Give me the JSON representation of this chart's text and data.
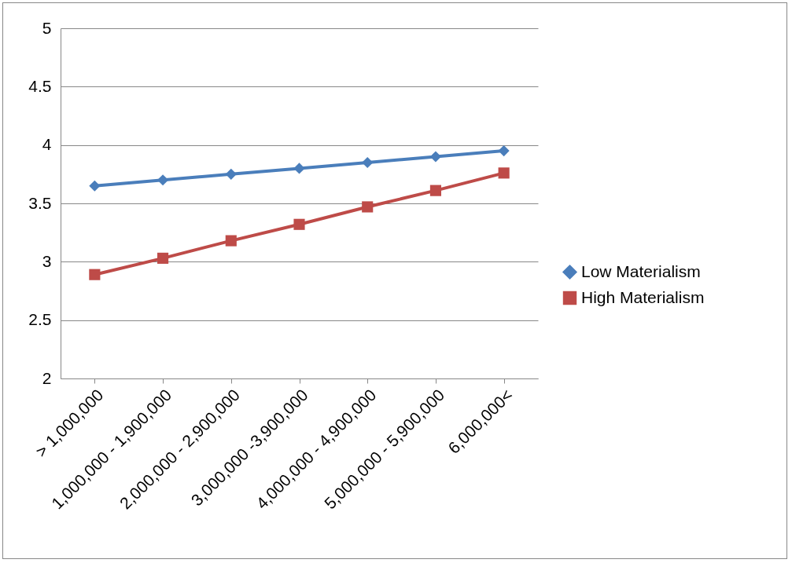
{
  "chart_data": {
    "type": "line",
    "categories": [
      "> 1,000,000",
      "1,000,000 - 1,900,000",
      "2,000,000 - 2,900,000",
      "3,000,000 -3,900,000",
      "4,000,000 - 4,900,000",
      "5,000,000 - 5,900,000",
      "6,000,000<"
    ],
    "series": [
      {
        "name": "Low Materialism",
        "color": "#4a7ebb",
        "marker": "diamond",
        "values": [
          3.65,
          3.7,
          3.75,
          3.8,
          3.85,
          3.9,
          3.95
        ]
      },
      {
        "name": "High Materialism",
        "color": "#be4b48",
        "marker": "square",
        "values": [
          2.89,
          3.03,
          3.18,
          3.32,
          3.47,
          3.61,
          3.76
        ]
      }
    ],
    "ylim": [
      2,
      5
    ],
    "yticks": [
      2,
      2.5,
      3,
      3.5,
      4,
      4.5,
      5
    ],
    "grid": "y",
    "legend": "right",
    "line_style": "solid"
  }
}
